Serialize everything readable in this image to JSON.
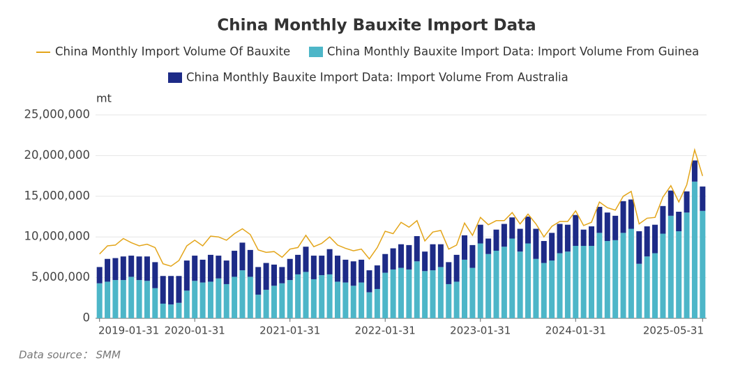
{
  "chart_data": {
    "type": "bar",
    "title": "China Monthly Bauxite Import Data",
    "y_axis_label": "mt",
    "source": "Data source： SMM",
    "categories": [
      "2019-01-31",
      null,
      null,
      null,
      null,
      null,
      null,
      null,
      null,
      null,
      null,
      null,
      "2020-01-31",
      null,
      null,
      null,
      null,
      null,
      null,
      null,
      null,
      null,
      null,
      null,
      "2021-01-31",
      null,
      null,
      null,
      null,
      null,
      null,
      null,
      null,
      null,
      null,
      null,
      "2022-01-31",
      null,
      null,
      null,
      null,
      null,
      null,
      null,
      null,
      null,
      null,
      null,
      "2023-01-31",
      null,
      null,
      null,
      null,
      null,
      null,
      null,
      null,
      null,
      null,
      null,
      "2024-01-31",
      null,
      null,
      null,
      null,
      null,
      null,
      null,
      null,
      null,
      null,
      null,
      null,
      null,
      null,
      null,
      "2025-05-31"
    ],
    "series": [
      {
        "name": "China Monthly Import Volume Of Bauxite",
        "type": "line",
        "color": "#e3a51a",
        "values": [
          7900000,
          8900000,
          9000000,
          9800000,
          9300000,
          8900000,
          9100000,
          8700000,
          6700000,
          6400000,
          7100000,
          8900000,
          9600000,
          8900000,
          10100000,
          10000000,
          9600000,
          10400000,
          11000000,
          10300000,
          8400000,
          8100000,
          8200000,
          7500000,
          8500000,
          8700000,
          10200000,
          8800000,
          9200000,
          10000000,
          9000000,
          8600000,
          8300000,
          8500000,
          7300000,
          8700000,
          10700000,
          10400000,
          11800000,
          11200000,
          12000000,
          9500000,
          10600000,
          10800000,
          8500000,
          9000000,
          11700000,
          10200000,
          12400000,
          11500000,
          12000000,
          12000000,
          13000000,
          11600000,
          12800000,
          11600000,
          10000000,
          11300000,
          11900000,
          11900000,
          13200000,
          11400000,
          11800000,
          14300000,
          13600000,
          13300000,
          15000000,
          15600000,
          11600000,
          12300000,
          12400000,
          14900000,
          16300000,
          14300000,
          16400000,
          20700000,
          17500000
        ]
      },
      {
        "name": "China Monthly Bauxite Import Data: Import Volume From Guinea",
        "type": "bar",
        "color": "#4db6c8",
        "values": [
          4300000,
          4500000,
          4700000,
          4700000,
          5100000,
          4700000,
          4600000,
          3700000,
          1800000,
          1700000,
          1900000,
          3400000,
          4600000,
          4400000,
          4500000,
          4900000,
          4200000,
          5100000,
          5900000,
          5100000,
          2900000,
          3500000,
          4000000,
          4300000,
          4700000,
          5400000,
          5700000,
          4800000,
          5300000,
          5400000,
          4500000,
          4400000,
          4000000,
          4400000,
          3200000,
          3600000,
          5600000,
          6000000,
          6200000,
          6000000,
          7000000,
          5800000,
          5900000,
          6300000,
          4200000,
          4500000,
          7200000,
          6200000,
          9200000,
          7900000,
          8300000,
          8800000,
          9800000,
          8200000,
          9200000,
          7300000,
          6800000,
          7100000,
          8000000,
          8200000,
          8900000,
          8900000,
          8900000,
          10500000,
          9500000,
          9600000,
          10500000,
          11000000,
          6700000,
          7600000,
          8000000,
          10400000,
          12600000,
          10700000,
          13000000,
          16800000,
          13200000
        ]
      },
      {
        "name": "China Monthly Bauxite Import Data: Import Volume From Australia",
        "type": "bar",
        "color": "#1d2b87",
        "values": [
          2000000,
          2800000,
          2700000,
          2900000,
          2600000,
          2900000,
          3000000,
          3200000,
          3400000,
          3500000,
          3300000,
          3700000,
          3100000,
          2800000,
          3300000,
          2800000,
          2900000,
          3200000,
          3400000,
          3300000,
          3400000,
          3300000,
          2600000,
          2000000,
          2600000,
          2400000,
          3100000,
          2900000,
          2400000,
          3100000,
          3200000,
          2800000,
          3000000,
          2800000,
          2700000,
          2900000,
          2300000,
          2600000,
          2900000,
          3000000,
          3100000,
          2400000,
          3200000,
          2800000,
          2700000,
          3300000,
          3000000,
          2800000,
          2300000,
          1900000,
          2600000,
          2800000,
          2600000,
          2800000,
          3300000,
          3700000,
          2700000,
          3400000,
          3600000,
          3300000,
          3800000,
          2000000,
          2400000,
          3200000,
          3500000,
          3000000,
          3900000,
          3600000,
          4000000,
          3700000,
          3500000,
          3400000,
          3100000,
          2400000,
          2600000,
          2600000,
          3000000
        ]
      }
    ],
    "stacked": true,
    "ylim": [
      0,
      25000000
    ],
    "yticks": [
      0,
      {
        "value": 5000000,
        "label": "5,000,000"
      },
      {
        "value": 10000000,
        "label": "10,000,000"
      },
      {
        "value": 15000000,
        "label": "15,000,000"
      },
      {
        "value": 20000000,
        "label": "20,000,000"
      },
      {
        "value": 25000000,
        "label": "25,000,000"
      }
    ],
    "grid": true,
    "legend": "top"
  }
}
